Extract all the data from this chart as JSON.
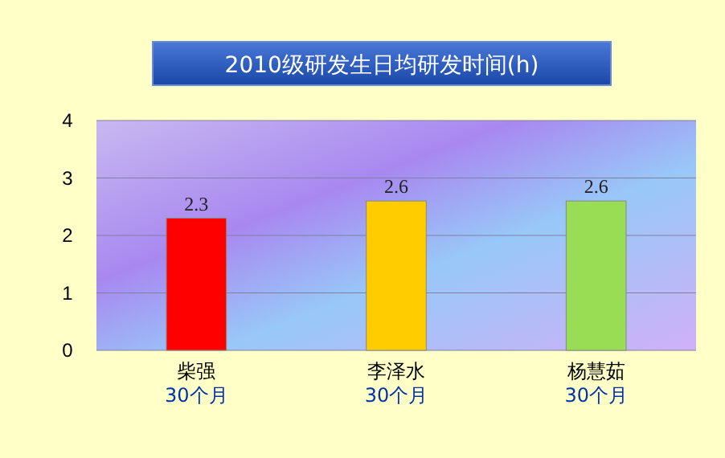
{
  "chart_data": {
    "type": "bar",
    "title": "2010级研发生日均研发时间(h)",
    "categories": [
      "柴强\n30个月",
      "李泽水\n30个月",
      "杨慧茹\n30个月"
    ],
    "values": [
      2.3,
      2.6,
      2.6
    ],
    "colors": [
      "#ff0000",
      "#ffcc00",
      "#99dd55"
    ],
    "ylim": [
      0,
      4
    ],
    "yticks": [
      0,
      1,
      2,
      3,
      4
    ],
    "grid": "y",
    "data_labels": true
  }
}
